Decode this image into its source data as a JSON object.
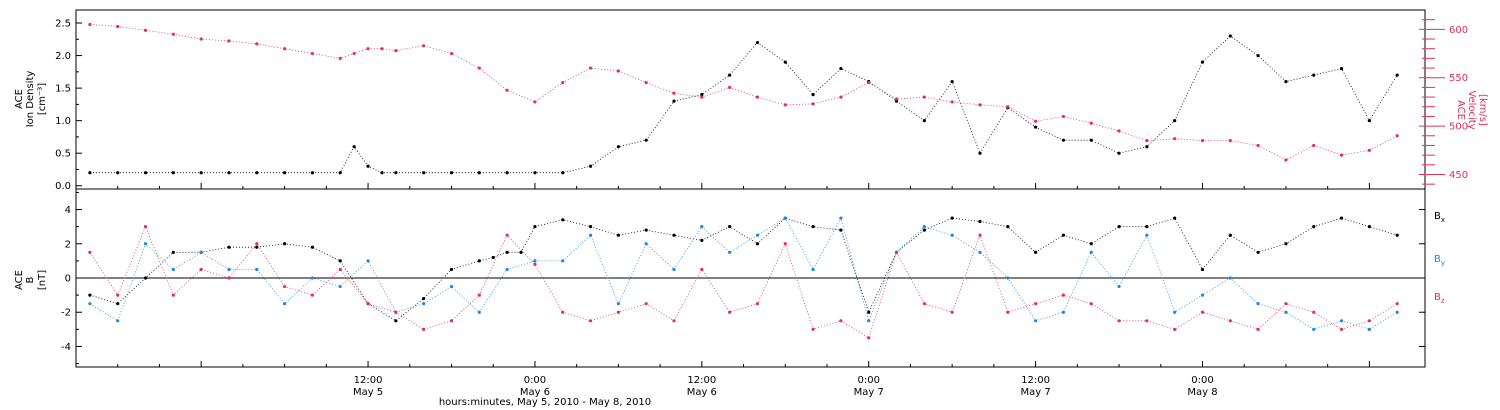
{
  "chart_data": [
    {
      "type": "scatter",
      "panel": "ACE ion density and velocity",
      "ylabel_left": [
        "ACE",
        "Ion Density",
        "[cm⁻³]"
      ],
      "ylabel_right": [
        "ACE",
        "Velocity",
        "[km/s]"
      ],
      "xlim_hours": [
        -9,
        88
      ],
      "ylim_left": [
        -0.05,
        2.7
      ],
      "ylim_right": [
        435,
        620
      ],
      "yticks_left": [
        "0.0",
        "0.5",
        "1.0",
        "1.5",
        "2.0",
        "2.5"
      ],
      "yticks_right": [
        "450",
        "500",
        "550",
        "600"
      ],
      "series": [
        {
          "name": "",
          "color": "#000000",
          "axis": "left",
          "x": [
            -8,
            -6,
            -4,
            -2,
            0,
            2,
            4,
            6,
            8,
            10,
            11,
            12,
            13,
            14,
            16,
            18,
            20,
            22,
            24,
            26,
            28,
            30,
            32,
            34,
            36,
            38,
            40,
            42,
            44,
            46,
            48,
            50,
            52,
            54,
            56,
            58,
            60,
            62,
            64,
            66,
            68,
            70,
            72,
            74,
            76,
            78,
            80,
            82,
            84,
            86
          ],
          "y": [
            0.2,
            0.2,
            0.2,
            0.2,
            0.2,
            0.2,
            0.2,
            0.2,
            0.2,
            0.2,
            0.6,
            0.3,
            0.2,
            0.2,
            0.2,
            0.2,
            0.2,
            0.2,
            0.2,
            0.2,
            0.3,
            0.6,
            0.7,
            1.3,
            1.4,
            1.7,
            2.2,
            1.9,
            1.4,
            1.8,
            1.6,
            1.3,
            1.0,
            1.6,
            0.5,
            1.2,
            0.9,
            0.7,
            0.7,
            0.5,
            0.6,
            1.0,
            1.9,
            2.3,
            2.0,
            1.6,
            1.7,
            1.8,
            1.0,
            1.7
          ]
        },
        {
          "name": "",
          "color": "#e0305e",
          "axis": "right",
          "x": [
            -8,
            -6,
            -4,
            -2,
            0,
            2,
            4,
            6,
            8,
            10,
            11,
            12,
            13,
            14,
            16,
            18,
            20,
            22,
            24,
            26,
            28,
            30,
            32,
            34,
            36,
            38,
            40,
            42,
            44,
            46,
            48,
            50,
            52,
            54,
            56,
            58,
            60,
            62,
            64,
            66,
            68,
            70,
            72,
            74,
            76,
            78,
            80,
            82,
            84,
            86
          ],
          "y": [
            605,
            603,
            599,
            595,
            590,
            588,
            585,
            580,
            575,
            570,
            575,
            580,
            580,
            578,
            583,
            575,
            560,
            537,
            525,
            545,
            560,
            557,
            545,
            534,
            530,
            540,
            530,
            522,
            523,
            530,
            545,
            528,
            530,
            525,
            522,
            520,
            505,
            510,
            503,
            495,
            485,
            487,
            485,
            485,
            480,
            465,
            480,
            470,
            475,
            490
          ]
        }
      ]
    },
    {
      "type": "scatter",
      "panel": "ACE magnetic field components",
      "ylabel": [
        "ACE",
        "B",
        "[nT]"
      ],
      "xlim_hours": [
        -9,
        88
      ],
      "ylim": [
        -5.2,
        5.2
      ],
      "yticks": [
        "-4",
        "-2",
        "0",
        "2",
        "4"
      ],
      "zero_line": true,
      "series": [
        {
          "name": "Bx",
          "color": "#000000",
          "x": [
            -8,
            -6,
            -4,
            -2,
            0,
            2,
            4,
            6,
            8,
            10,
            12,
            14,
            16,
            18,
            20,
            21,
            22,
            23,
            24,
            26,
            28,
            30,
            32,
            34,
            36,
            38,
            40,
            42,
            44,
            46,
            48,
            50,
            52,
            54,
            56,
            58,
            60,
            62,
            64,
            66,
            68,
            70,
            72,
            74,
            76,
            78,
            80,
            82,
            84,
            86
          ],
          "y": [
            -1.0,
            -1.5,
            0.0,
            1.5,
            1.5,
            1.8,
            1.8,
            2.0,
            1.8,
            1.0,
            -1.5,
            -2.5,
            -1.2,
            0.5,
            1.0,
            1.2,
            1.5,
            1.5,
            3.0,
            3.4,
            3.0,
            2.5,
            2.8,
            2.5,
            2.2,
            3.0,
            2.0,
            3.5,
            3.0,
            2.8,
            -2.0,
            1.5,
            2.8,
            3.5,
            3.3,
            3.0,
            1.5,
            2.5,
            2.0,
            3.0,
            3.0,
            3.5,
            0.5,
            2.5,
            1.5,
            2.0,
            3.0,
            3.5,
            3.0,
            2.5
          ]
        },
        {
          "name": "By",
          "color": "#1e88e5",
          "x": [
            -8,
            -6,
            -4,
            -2,
            0,
            2,
            4,
            6,
            8,
            10,
            12,
            14,
            16,
            18,
            20,
            22,
            24,
            26,
            28,
            30,
            32,
            34,
            36,
            38,
            40,
            42,
            44,
            46,
            48,
            50,
            52,
            54,
            56,
            58,
            60,
            62,
            64,
            66,
            68,
            70,
            72,
            74,
            76,
            78,
            80,
            82,
            84,
            86
          ],
          "y": [
            -1.5,
            -2.5,
            2.0,
            0.5,
            1.5,
            0.5,
            0.5,
            -1.5,
            0.0,
            -0.5,
            1.0,
            -2.0,
            -1.5,
            -0.5,
            -2.0,
            0.5,
            1.0,
            1.0,
            2.5,
            -1.5,
            2.0,
            0.5,
            3.0,
            1.5,
            2.5,
            3.5,
            0.5,
            3.5,
            -2.5,
            1.5,
            3.0,
            2.5,
            1.5,
            0.0,
            -2.5,
            -2.0,
            1.5,
            -0.5,
            2.5,
            -2.0,
            -1.0,
            0.0,
            -1.5,
            -2.0,
            -3.0,
            -2.5,
            -3.0,
            -2.0
          ]
        },
        {
          "name": "Bz",
          "color": "#e0305e",
          "x": [
            -8,
            -6,
            -4,
            -2,
            0,
            2,
            4,
            6,
            8,
            10,
            12,
            14,
            16,
            18,
            20,
            22,
            24,
            26,
            28,
            30,
            32,
            34,
            36,
            38,
            40,
            42,
            44,
            46,
            48,
            50,
            52,
            54,
            56,
            58,
            60,
            62,
            64,
            66,
            68,
            70,
            72,
            74,
            76,
            78,
            80,
            82,
            84,
            86
          ],
          "y": [
            1.5,
            -1.0,
            3.0,
            -1.0,
            0.5,
            0.0,
            2.0,
            -0.5,
            -1.0,
            0.5,
            -1.5,
            -2.0,
            -3.0,
            -2.5,
            -1.0,
            2.5,
            0.8,
            -2.0,
            -2.5,
            -2.0,
            -1.5,
            -2.5,
            0.5,
            -2.0,
            -1.5,
            2.0,
            -3.0,
            -2.5,
            -3.5,
            1.5,
            -1.5,
            -2.0,
            2.5,
            -2.0,
            -1.5,
            -1.0,
            -1.5,
            -2.5,
            -2.5,
            -3.0,
            -2.0,
            -2.5,
            -3.0,
            -1.5,
            -2.0,
            -3.0,
            -2.5,
            -1.5
          ]
        }
      ]
    }
  ],
  "x_axis": {
    "ticks": [
      {
        "hour": 12,
        "time": "12:00",
        "day": "May 5"
      },
      {
        "hour": 24,
        "time": "0:00",
        "day": "May 6"
      },
      {
        "hour": 36,
        "time": "12:00",
        "day": "May 6"
      },
      {
        "hour": 48,
        "time": "0:00",
        "day": "May 7"
      },
      {
        "hour": 60,
        "time": "12:00",
        "day": "May 7"
      },
      {
        "hour": 72,
        "time": "0:00",
        "day": "May 8"
      }
    ],
    "title": "hours:minutes, May  5, 2010 - May  8, 2010"
  },
  "legend": [
    {
      "name": "B",
      "sub": "x",
      "color": "#000000"
    },
    {
      "name": "B",
      "sub": "y",
      "color": "#1e88e5"
    },
    {
      "name": "B",
      "sub": "z",
      "color": "#e0305e"
    }
  ]
}
